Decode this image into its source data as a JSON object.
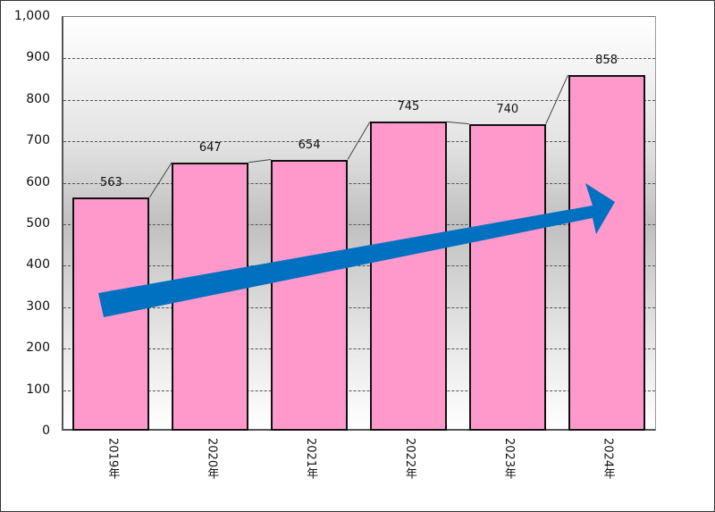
{
  "chart_data": {
    "type": "bar",
    "title": "",
    "xlabel": "",
    "ylabel": "",
    "categories": [
      "2019年",
      "2020年",
      "2021年",
      "2022年",
      "2023年",
      "2024年"
    ],
    "values": [
      563,
      647,
      654,
      745,
      740,
      858
    ],
    "data_labels": [
      "563",
      "647",
      "654",
      "745",
      "740",
      "858"
    ],
    "ylim": [
      0,
      1000
    ],
    "yticks": [
      "0",
      "100",
      "200",
      "300",
      "400",
      "500",
      "600",
      "700",
      "800",
      "900",
      "1,000"
    ],
    "grid": true,
    "legend": null,
    "bar_color": "#ff99cc",
    "annotations": [
      {
        "type": "arrow",
        "color": "#0070c0",
        "description": "upward trend arrow"
      }
    ]
  }
}
